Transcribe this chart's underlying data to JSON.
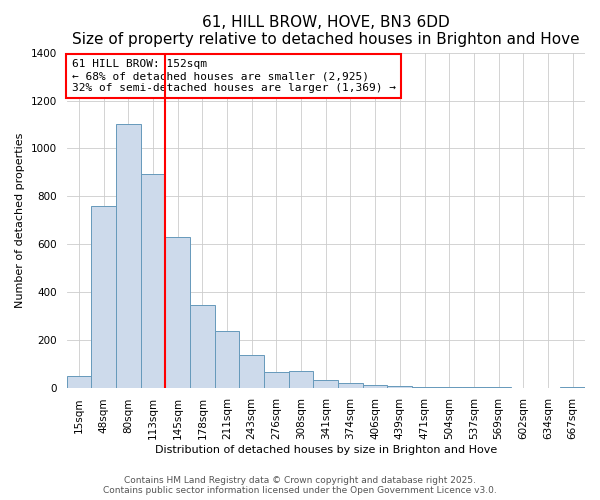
{
  "title": "61, HILL BROW, HOVE, BN3 6DD",
  "subtitle": "Size of property relative to detached houses in Brighton and Hove",
  "xlabel": "Distribution of detached houses by size in Brighton and Hove",
  "ylabel": "Number of detached properties",
  "bar_labels": [
    "15sqm",
    "48sqm",
    "80sqm",
    "113sqm",
    "145sqm",
    "178sqm",
    "211sqm",
    "243sqm",
    "276sqm",
    "308sqm",
    "341sqm",
    "374sqm",
    "406sqm",
    "439sqm",
    "471sqm",
    "504sqm",
    "537sqm",
    "569sqm",
    "602sqm",
    "634sqm",
    "667sqm"
  ],
  "bar_values": [
    50,
    760,
    1100,
    895,
    630,
    345,
    235,
    135,
    65,
    70,
    30,
    20,
    10,
    5,
    3,
    2,
    1,
    1,
    0,
    0,
    2
  ],
  "bar_color": "#cddaeb",
  "bar_edge_color": "#6699bb",
  "ylim": [
    0,
    1400
  ],
  "yticks": [
    0,
    200,
    400,
    600,
    800,
    1000,
    1200,
    1400
  ],
  "property_line_x": 3.5,
  "annotation_text_line1": "61 HILL BROW: 152sqm",
  "annotation_text_line2": "← 68% of detached houses are smaller (2,925)",
  "annotation_text_line3": "32% of semi-detached houses are larger (1,369) →",
  "footer1": "Contains HM Land Registry data © Crown copyright and database right 2025.",
  "footer2": "Contains public sector information licensed under the Open Government Licence v3.0.",
  "title_fontsize": 11,
  "subtitle_fontsize": 9,
  "annotation_fontsize": 8,
  "footer_fontsize": 6.5,
  "xlabel_fontsize": 8,
  "ylabel_fontsize": 8,
  "tick_fontsize": 7.5
}
